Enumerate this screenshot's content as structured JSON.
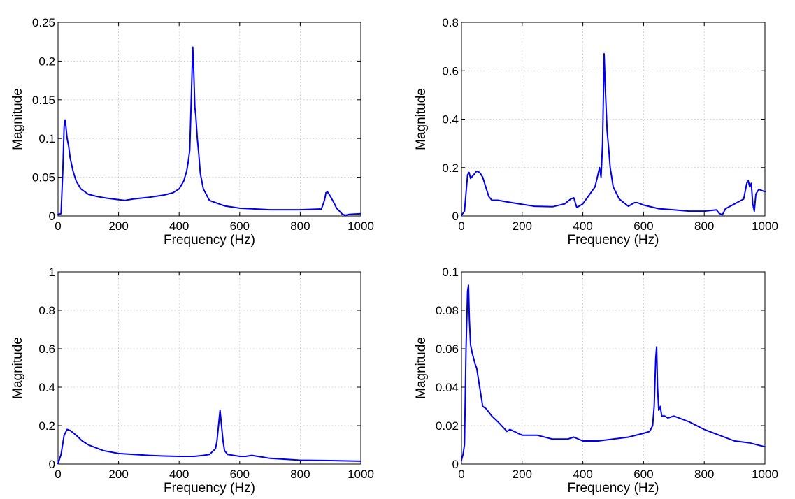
{
  "chart_data": [
    {
      "type": "line",
      "xlabel": "Frequency (Hz)",
      "ylabel": "Magnitude",
      "xlim": [
        0,
        1000
      ],
      "ylim": [
        0,
        0.25
      ],
      "xticks": [
        0,
        200,
        400,
        600,
        800,
        1000
      ],
      "yticks": [
        0,
        0.05,
        0.1,
        0.15,
        0.2,
        0.25
      ],
      "ytick_labels": [
        "0",
        "0.05",
        "0.1",
        "0.15",
        "0.2",
        "0.25"
      ],
      "grid": true,
      "line_color": "#0000ee",
      "series": [
        {
          "x": [
            0,
            10,
            16,
            20,
            23,
            26,
            30,
            35,
            40,
            50,
            60,
            75,
            100,
            130,
            160,
            200,
            220,
            250,
            300,
            350,
            380,
            400,
            415,
            425,
            430,
            435,
            440,
            445,
            448,
            452,
            455,
            460,
            465,
            470,
            480,
            500,
            550,
            600,
            650,
            700,
            800,
            870,
            880,
            885,
            890,
            895,
            900,
            910,
            920,
            940,
            950,
            960,
            1000
          ],
          "y": [
            0.002,
            0.003,
            0.06,
            0.115,
            0.124,
            0.115,
            0.1,
            0.09,
            0.075,
            0.057,
            0.045,
            0.035,
            0.028,
            0.025,
            0.023,
            0.021,
            0.02,
            0.022,
            0.024,
            0.027,
            0.03,
            0.035,
            0.045,
            0.058,
            0.07,
            0.085,
            0.15,
            0.218,
            0.19,
            0.14,
            0.13,
            0.1,
            0.08,
            0.055,
            0.035,
            0.02,
            0.013,
            0.01,
            0.009,
            0.008,
            0.008,
            0.009,
            0.02,
            0.03,
            0.031,
            0.028,
            0.025,
            0.018,
            0.01,
            0.002,
            0.001,
            0.002,
            0.003
          ]
        }
      ]
    },
    {
      "type": "line",
      "xlabel": "Frequency (Hz)",
      "ylabel": "Magnitude",
      "xlim": [
        0,
        1000
      ],
      "ylim": [
        0,
        0.8
      ],
      "xticks": [
        0,
        200,
        400,
        600,
        800,
        1000
      ],
      "yticks": [
        0,
        0.2,
        0.4,
        0.6,
        0.8
      ],
      "ytick_labels": [
        "0",
        "0.2",
        "0.4",
        "0.6",
        "0.8"
      ],
      "grid": true,
      "line_color": "#0000ee",
      "series": [
        {
          "x": [
            0,
            10,
            20,
            25,
            30,
            40,
            50,
            60,
            70,
            80,
            90,
            100,
            120,
            150,
            200,
            240,
            300,
            340,
            360,
            370,
            380,
            400,
            420,
            440,
            455,
            460,
            465,
            470,
            475,
            480,
            485,
            490,
            500,
            520,
            550,
            570,
            580,
            590,
            600,
            650,
            700,
            750,
            800,
            840,
            850,
            860,
            870,
            900,
            930,
            940,
            945,
            950,
            955,
            960,
            965,
            970,
            980,
            1000
          ],
          "y": [
            0.003,
            0.02,
            0.17,
            0.18,
            0.155,
            0.17,
            0.185,
            0.18,
            0.16,
            0.12,
            0.08,
            0.065,
            0.065,
            0.058,
            0.048,
            0.04,
            0.038,
            0.05,
            0.07,
            0.075,
            0.035,
            0.05,
            0.085,
            0.12,
            0.2,
            0.16,
            0.3,
            0.67,
            0.5,
            0.35,
            0.28,
            0.2,
            0.12,
            0.07,
            0.04,
            0.055,
            0.055,
            0.05,
            0.045,
            0.03,
            0.025,
            0.02,
            0.02,
            0.025,
            0.01,
            0.005,
            0.03,
            0.05,
            0.07,
            0.135,
            0.145,
            0.12,
            0.135,
            0.05,
            0.02,
            0.09,
            0.11,
            0.1
          ]
        }
      ]
    },
    {
      "type": "line",
      "xlabel": "Frequency (Hz)",
      "ylabel": "Magnitude",
      "xlim": [
        0,
        1000
      ],
      "ylim": [
        0,
        1
      ],
      "xticks": [
        0,
        200,
        400,
        600,
        800,
        1000
      ],
      "yticks": [
        0,
        0.2,
        0.4,
        0.6,
        0.8,
        1
      ],
      "ytick_labels": [
        "0",
        "0.2",
        "0.4",
        "0.6",
        "0.8",
        "1"
      ],
      "grid": true,
      "line_color": "#0000ee",
      "series": [
        {
          "x": [
            0,
            10,
            20,
            30,
            40,
            60,
            80,
            100,
            150,
            200,
            250,
            300,
            350,
            400,
            450,
            480,
            500,
            520,
            525,
            530,
            535,
            540,
            545,
            550,
            560,
            580,
            600,
            620,
            640,
            660,
            700,
            800,
            900,
            1000
          ],
          "y": [
            0.003,
            0.05,
            0.15,
            0.18,
            0.175,
            0.15,
            0.12,
            0.1,
            0.07,
            0.055,
            0.05,
            0.045,
            0.042,
            0.04,
            0.04,
            0.045,
            0.05,
            0.08,
            0.12,
            0.2,
            0.28,
            0.2,
            0.12,
            0.07,
            0.05,
            0.045,
            0.04,
            0.04,
            0.045,
            0.04,
            0.03,
            0.02,
            0.018,
            0.015
          ]
        }
      ]
    },
    {
      "type": "line",
      "xlabel": "Frequency (Hz)",
      "ylabel": "Magnitude",
      "xlim": [
        0,
        1000
      ],
      "ylim": [
        0,
        0.1
      ],
      "xticks": [
        0,
        200,
        400,
        600,
        800,
        1000
      ],
      "yticks": [
        0,
        0.02,
        0.04,
        0.06,
        0.08,
        0.1
      ],
      "ytick_labels": [
        "0",
        "0.02",
        "0.04",
        "0.06",
        "0.08",
        "0.1"
      ],
      "grid": true,
      "line_color": "#0000ee",
      "series": [
        {
          "x": [
            0,
            5,
            10,
            15,
            20,
            23,
            26,
            30,
            35,
            40,
            45,
            50,
            55,
            60,
            70,
            80,
            90,
            100,
            120,
            150,
            160,
            200,
            250,
            300,
            350,
            370,
            400,
            450,
            500,
            550,
            600,
            620,
            630,
            635,
            640,
            643,
            646,
            650,
            655,
            660,
            670,
            680,
            700,
            750,
            800,
            850,
            900,
            950,
            1000
          ],
          "y": [
            0.002,
            0.005,
            0.01,
            0.06,
            0.09,
            0.093,
            0.075,
            0.062,
            0.058,
            0.055,
            0.052,
            0.05,
            0.045,
            0.04,
            0.03,
            0.029,
            0.027,
            0.025,
            0.022,
            0.017,
            0.018,
            0.015,
            0.015,
            0.013,
            0.013,
            0.014,
            0.012,
            0.012,
            0.013,
            0.014,
            0.016,
            0.017,
            0.02,
            0.03,
            0.055,
            0.061,
            0.04,
            0.028,
            0.03,
            0.025,
            0.025,
            0.024,
            0.025,
            0.022,
            0.018,
            0.015,
            0.012,
            0.011,
            0.009
          ]
        }
      ]
    }
  ]
}
